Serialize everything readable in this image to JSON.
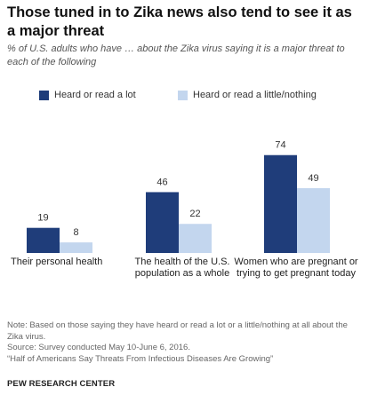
{
  "title": "Those tuned in to Zika news also tend to see it as a major threat",
  "subtitle": "% of U.S. adults who have … about the Zika virus saying it is a major threat to each of the following",
  "chart_data": {
    "type": "bar",
    "categories": [
      "Their personal health",
      "The health of the U.S. population as a whole",
      "Women who are pregnant or trying to get pregnant today"
    ],
    "series": [
      {
        "name": "Heard or read a lot",
        "values": [
          19,
          46,
          74
        ],
        "color": "#1f3d7a"
      },
      {
        "name": "Heard or read a little/nothing",
        "values": [
          8,
          22,
          49
        ],
        "color": "#c3d6ee"
      }
    ],
    "ylim": [
      0,
      100
    ],
    "grid": false,
    "legend": "top-left"
  },
  "notes": [
    "Note: Based on those saying they have heard or read a lot or a little/nothing at all about the Zika virus.",
    "Source: Survey conducted May 10-June 6, 2016.",
    "“Half of Americans Say Threats From Infectious Diseases Are Growing”"
  ],
  "brand": "PEW RESEARCH CENTER"
}
